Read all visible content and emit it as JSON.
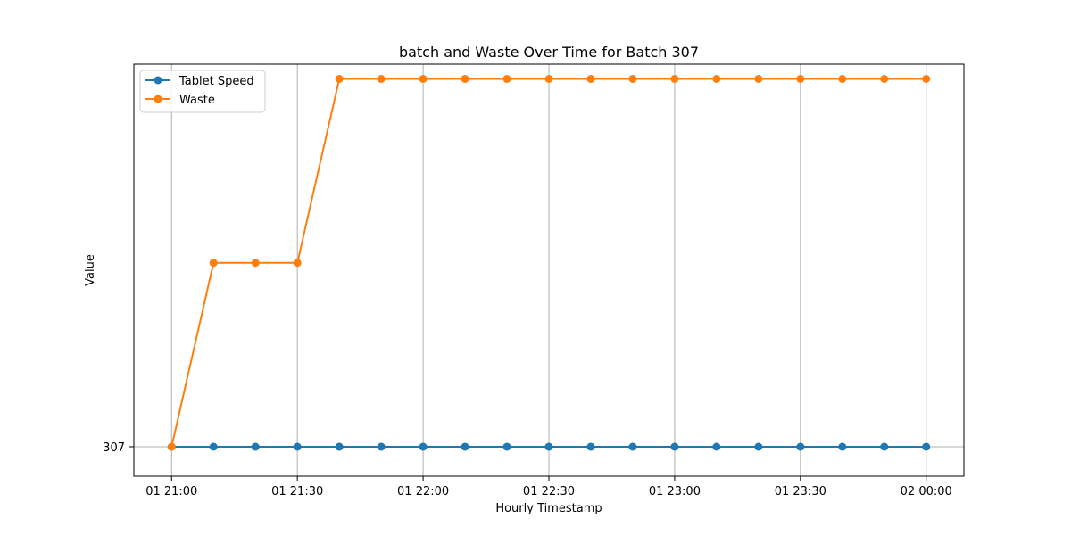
{
  "chart_data": {
    "type": "line",
    "title": "batch and Waste Over Time for Batch 307",
    "xlabel": "Hourly Timestamp",
    "ylabel": "Value",
    "x_tick_labels": [
      "01 21:00",
      "01 21:30",
      "01 22:00",
      "01 22:30",
      "01 23:00",
      "01 23:30",
      "02 00:00"
    ],
    "x_tick_minutes": [
      0,
      30,
      60,
      90,
      120,
      150,
      180
    ],
    "x_minutes": [
      0,
      10,
      20,
      30,
      40,
      50,
      60,
      70,
      80,
      90,
      100,
      110,
      120,
      130,
      140,
      150,
      160,
      170,
      180
    ],
    "y_ticks": [
      307
    ],
    "grid_axis": "x",
    "legend_position": "upper-left",
    "series": [
      {
        "name": "Tablet Speed",
        "color": "#1f77b4",
        "values": [
          307,
          307,
          307,
          307,
          307,
          307,
          307,
          307,
          307,
          307,
          307,
          307,
          307,
          307,
          307,
          307,
          307,
          307,
          307
        ]
      },
      {
        "name": "Waste",
        "color": "#ff7f0e",
        "values": [
          307,
          332,
          332,
          332,
          357,
          357,
          357,
          357,
          357,
          357,
          357,
          357,
          357,
          357,
          357,
          357,
          357,
          357,
          357
        ]
      }
    ]
  }
}
